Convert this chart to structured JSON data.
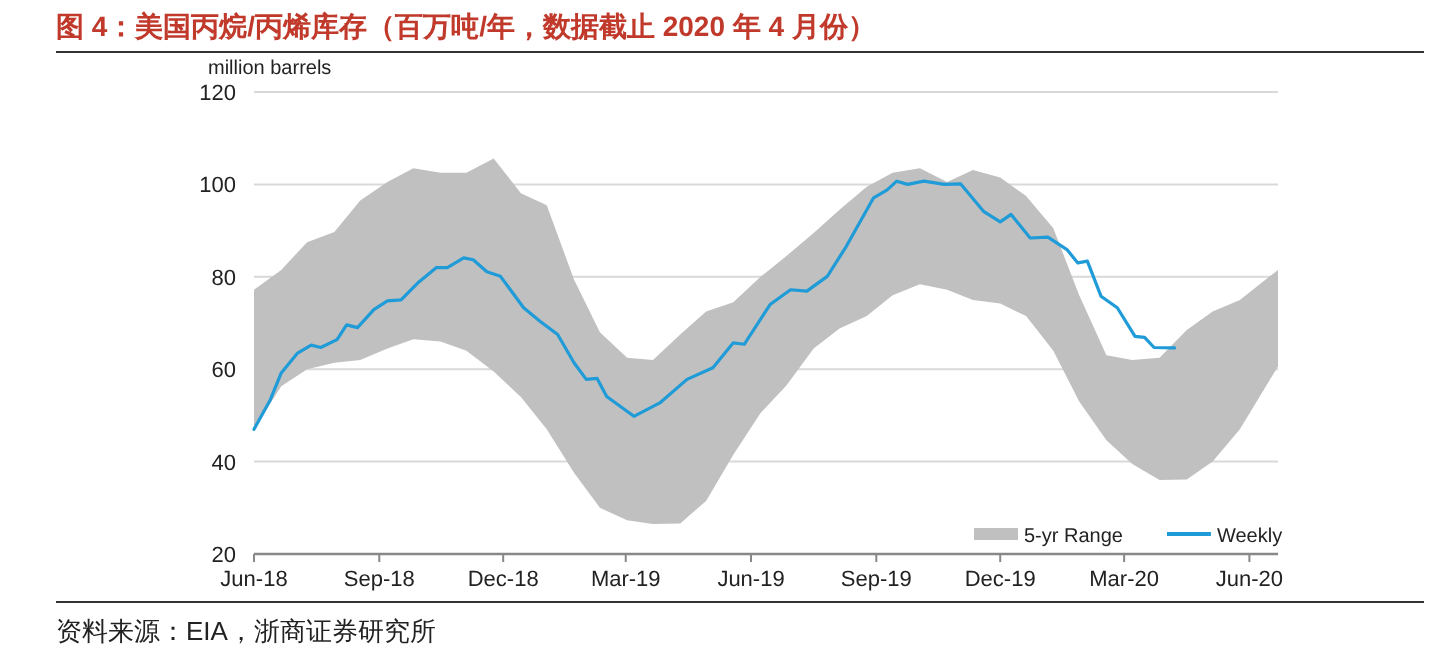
{
  "chart_data": {
    "type": "line",
    "title": "图 4：美国丙烷/丙烯库存（百万吨/年，数据截止 2020 年 4 月份）",
    "ylabel": "million barrels",
    "annotations": [
      "资料来源：EIA，浙商证券研究所"
    ],
    "xlim": [
      "2018-06-01",
      "2020-06-22"
    ],
    "xticks": [
      {
        "value": "2018-06-01",
        "label": "Jun-18"
      },
      {
        "value": "2018-09-01",
        "label": "Sep-18"
      },
      {
        "value": "2018-12-01",
        "label": "Dec-18"
      },
      {
        "value": "2019-03-01",
        "label": "Mar-19"
      },
      {
        "value": "2019-06-01",
        "label": "Jun-19"
      },
      {
        "value": "2019-09-01",
        "label": "Sep-19"
      },
      {
        "value": "2019-12-01",
        "label": "Dec-19"
      },
      {
        "value": "2020-03-01",
        "label": "Mar-20"
      },
      {
        "value": "2020-06-01",
        "label": "Jun-20"
      }
    ],
    "ylim": [
      20,
      120
    ],
    "yticks": [
      20,
      40,
      60,
      80,
      100,
      120
    ],
    "grid": "y",
    "legend": "bottom right",
    "series": [
      {
        "name": "5-yr Range",
        "type": "area",
        "color": "#c0c0c0",
        "x": [
          "2018-06-01",
          "2018-06-21",
          "2018-07-10",
          "2018-07-30",
          "2018-08-18",
          "2018-09-07",
          "2018-09-26",
          "2018-10-16",
          "2018-11-04",
          "2018-11-24",
          "2018-12-14",
          "2019-01-02",
          "2019-01-22",
          "2019-02-10",
          "2019-03-02",
          "2019-03-21",
          "2019-04-10",
          "2019-04-29",
          "2019-05-19",
          "2019-06-08",
          "2019-06-27",
          "2019-07-17",
          "2019-08-05",
          "2019-08-25",
          "2019-09-13",
          "2019-10-03",
          "2019-10-23",
          "2019-11-11",
          "2019-12-01",
          "2019-12-20",
          "2020-01-09",
          "2020-01-28",
          "2020-02-17",
          "2020-03-07",
          "2020-03-27",
          "2020-04-16",
          "2020-05-05",
          "2020-05-25",
          "2020-06-22"
        ],
        "values": [
          null,
          null,
          null,
          null,
          null,
          null,
          null,
          null,
          null,
          null,
          null,
          null,
          null,
          null,
          null,
          null,
          null,
          null,
          null,
          null,
          null,
          null,
          null,
          null,
          null,
          null,
          null,
          null,
          null,
          null,
          null,
          null,
          null,
          null,
          null,
          null,
          null,
          null,
          null
        ],
        "upper": [
          77.2,
          81.5,
          87.5,
          89.7,
          96.5,
          100.5,
          103.5,
          102.5,
          102.5,
          105.6,
          98.1,
          95.5,
          79.4,
          68.0,
          62.5,
          62.0,
          67.5,
          72.5,
          74.5,
          80.0,
          84.5,
          89.5,
          94.5,
          99.5,
          102.5,
          103.5,
          100.5,
          103.1,
          101.5,
          97.5,
          90.5,
          76.0,
          63.0,
          62.0,
          62.5,
          68.5,
          72.5,
          75.0,
          81.5
        ],
        "lower": [
          47.0,
          56.3,
          60.0,
          61.4,
          62.0,
          64.5,
          66.5,
          66.0,
          64.0,
          59.5,
          54.0,
          47.0,
          37.6,
          30.0,
          27.3,
          26.5,
          26.6,
          31.5,
          41.5,
          50.5,
          56.5,
          64.5,
          68.8,
          71.5,
          76.0,
          78.4,
          77.2,
          75.0,
          74.2,
          71.5,
          64.0,
          53.0,
          44.6,
          39.5,
          36.0,
          36.1,
          40.0,
          47.0,
          60.6
        ]
      },
      {
        "name": "Weekly",
        "color": "#1f9bd7",
        "x": [
          "2018-06-01",
          "2018-06-13",
          "2018-06-21",
          "2018-07-03",
          "2018-07-13",
          "2018-07-20",
          "2018-08-01",
          "2018-08-08",
          "2018-08-16",
          "2018-08-28",
          "2018-09-07",
          "2018-09-17",
          "2018-09-29",
          "2018-10-13",
          "2018-10-21",
          "2018-11-02",
          "2018-11-09",
          "2018-11-19",
          "2018-11-29",
          "2018-12-16",
          "2018-12-28",
          "2019-01-10",
          "2019-01-22",
          "2019-01-31",
          "2019-02-08",
          "2019-02-15",
          "2019-03-07",
          "2019-03-26",
          "2019-04-15",
          "2019-05-04",
          "2019-05-19",
          "2019-05-27",
          "2019-06-15",
          "2019-06-30",
          "2019-07-12",
          "2019-07-27",
          "2019-08-10",
          "2019-08-30",
          "2019-09-09",
          "2019-09-16",
          "2019-09-24",
          "2019-10-06",
          "2019-10-21",
          "2019-11-02",
          "2019-11-19",
          "2019-12-01",
          "2019-12-09",
          "2019-12-23",
          "2020-01-05",
          "2020-01-19",
          "2020-01-27",
          "2020-02-03",
          "2020-02-13",
          "2020-02-25",
          "2020-03-09",
          "2020-03-16",
          "2020-03-23",
          "2020-04-07"
        ],
        "values": [
          47.0,
          53.4,
          59.2,
          63.5,
          65.2,
          64.7,
          66.4,
          69.6,
          69.0,
          72.9,
          74.8,
          75.0,
          78.6,
          82.0,
          82.0,
          84.1,
          83.7,
          81.1,
          80.1,
          73.3,
          70.4,
          67.5,
          61.4,
          57.8,
          58.0,
          54.1,
          49.8,
          52.7,
          57.8,
          60.3,
          65.7,
          65.4,
          74.0,
          77.2,
          76.9,
          80.1,
          86.6,
          97.1,
          98.8,
          100.7,
          100.0,
          100.7,
          100.0,
          100.1,
          94.1,
          91.9,
          93.5,
          88.4,
          88.6,
          85.9,
          83.0,
          83.4,
          75.8,
          73.3,
          67.1,
          66.9,
          64.7,
          64.6
        ]
      }
    ]
  }
}
